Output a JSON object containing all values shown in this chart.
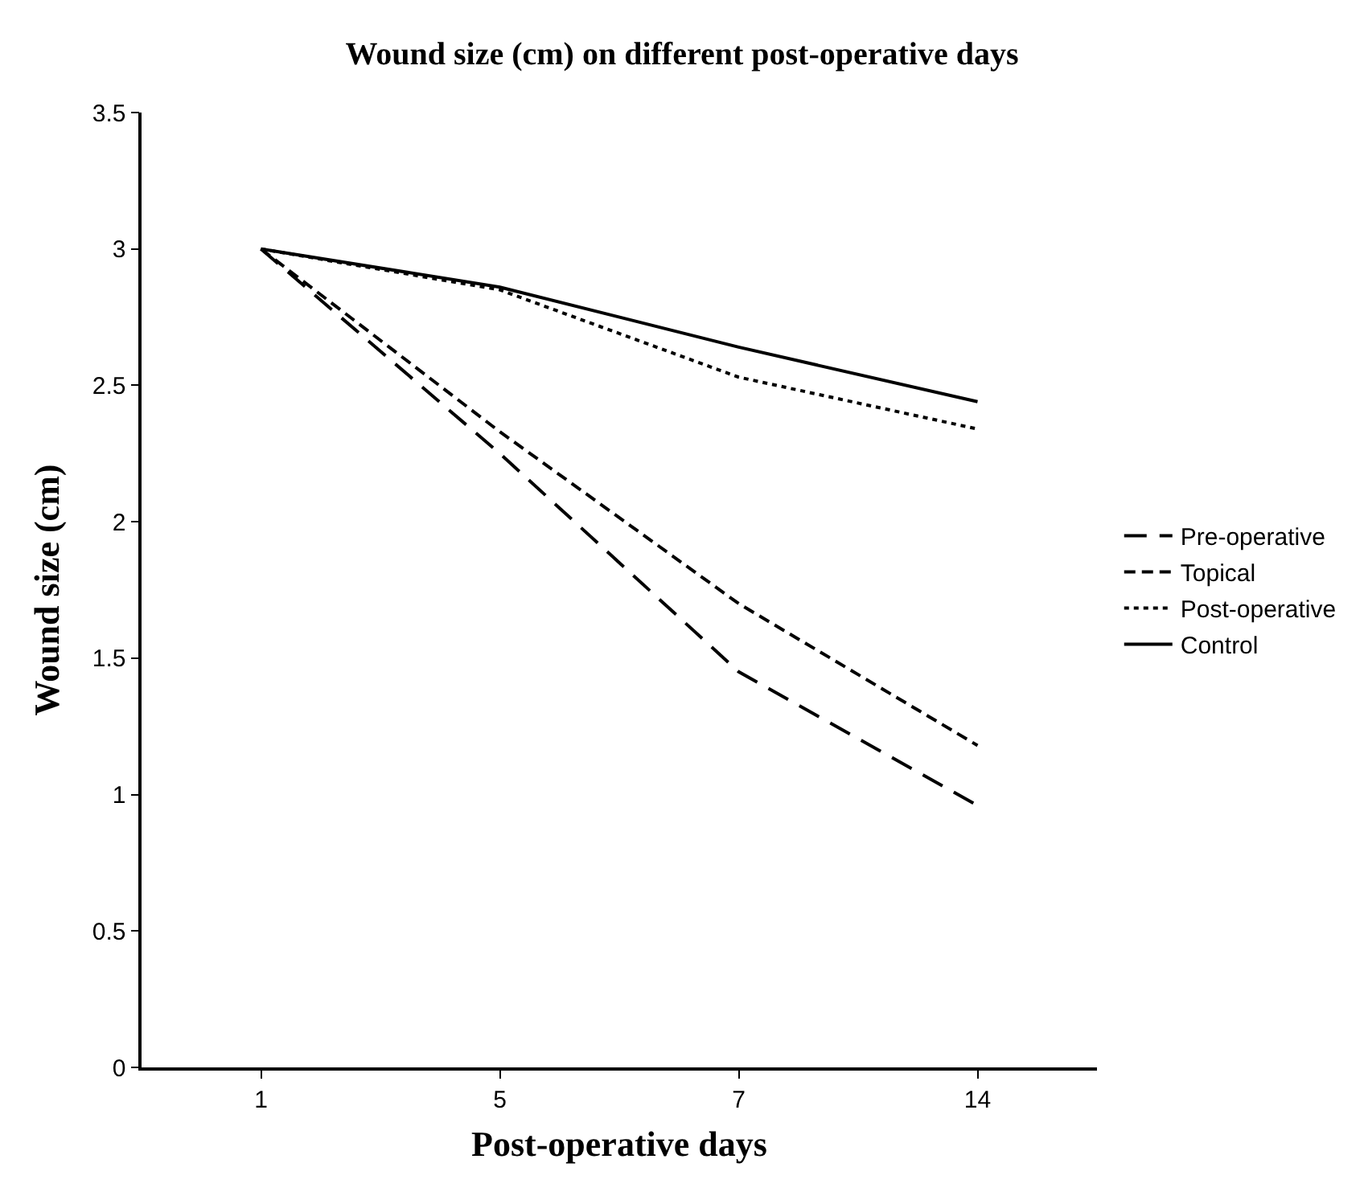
{
  "chart_data": {
    "type": "line",
    "title": "Wound size (cm) on different post-operative days",
    "xlabel": "Post-operative days",
    "ylabel": "Wound size (cm)",
    "categories": [
      "1",
      "5",
      "7",
      "14"
    ],
    "series": [
      {
        "name": "Pre-operative",
        "color": "#000000",
        "line_style": "dashed",
        "values": [
          3,
          2.25,
          1.45,
          0.96
        ]
      },
      {
        "name": "Topical",
        "color": "#000000",
        "line_style": "dashed",
        "values": [
          3,
          2.33,
          1.7,
          1.18
        ]
      },
      {
        "name": "Post-operative",
        "color": "#000000",
        "line_style": "dotted",
        "values": [
          3,
          2.85,
          2.53,
          2.34
        ]
      },
      {
        "name": "Control",
        "color": "#000000",
        "line_style": "solid",
        "values": [
          3,
          2.86,
          2.64,
          2.44
        ]
      }
    ],
    "ylim": [
      0,
      3.5
    ],
    "yticks": [
      0,
      0.5,
      1,
      1.5,
      2,
      2.5,
      3,
      3.5
    ],
    "grid": false,
    "legend": "right",
    "marker": "none"
  }
}
